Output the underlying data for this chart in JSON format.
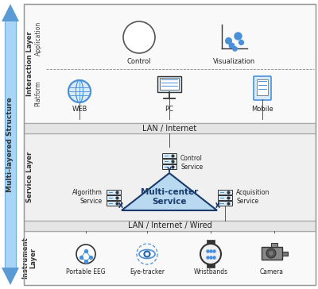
{
  "title": "Multi-layered Structure",
  "bg_color": "#ffffff",
  "arrow_color": "#5b9bd5",
  "border_color": "#999999",
  "text_color": "#222222",
  "blue_icon": "#4a90d9",
  "dark_blue": "#1f4e79",
  "layer_label_color": "#333333",
  "interaction_layer_label": "Interaction Layer",
  "service_layer_label": "Service Layer",
  "instrument_layer_label": "Instrument\nLayer",
  "lan_internet_label": "LAN / Internet",
  "lan_wired_label": "LAN / Internet / Wired",
  "app_label": "Application",
  "platform_label": "Platform",
  "control_label": "Control",
  "visualization_label": "Visualization",
  "web_label": "WEB",
  "pc_label": "PC",
  "mobile_label": "Mobile",
  "multicenter_label": "Multi-center\nService",
  "control_service_label": "Control\nService",
  "algorithm_service_label": "Algorithm\nService",
  "acquisition_service_label": "Acquisition\nService",
  "eeg_label": "Portable EEG",
  "eye_label": "Eye-tracker",
  "wristband_label": "Wristbands",
  "camera_label": "Camera"
}
